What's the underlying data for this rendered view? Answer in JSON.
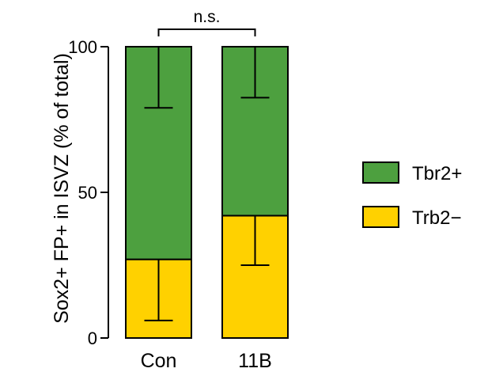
{
  "chart_data": {
    "type": "bar",
    "stacked": true,
    "categories": [
      "Con",
      "11B"
    ],
    "series": [
      {
        "name": "Trb2−",
        "values": [
          27,
          42
        ],
        "error_low": [
          6,
          25
        ],
        "color": "#FFD100"
      },
      {
        "name": "Tbr2+",
        "values": [
          73,
          58
        ],
        "error_low": [
          79,
          82.5
        ],
        "color": "#4DA03F"
      }
    ],
    "ylabel": "Sox2+ FP+ in ISVZ (% of total)",
    "ylim": [
      0,
      100
    ],
    "yticks": [
      0,
      50,
      100
    ],
    "significance": {
      "between": [
        "Con",
        "11B"
      ],
      "label": "n.s."
    },
    "legend_position": "right",
    "grid": false
  }
}
